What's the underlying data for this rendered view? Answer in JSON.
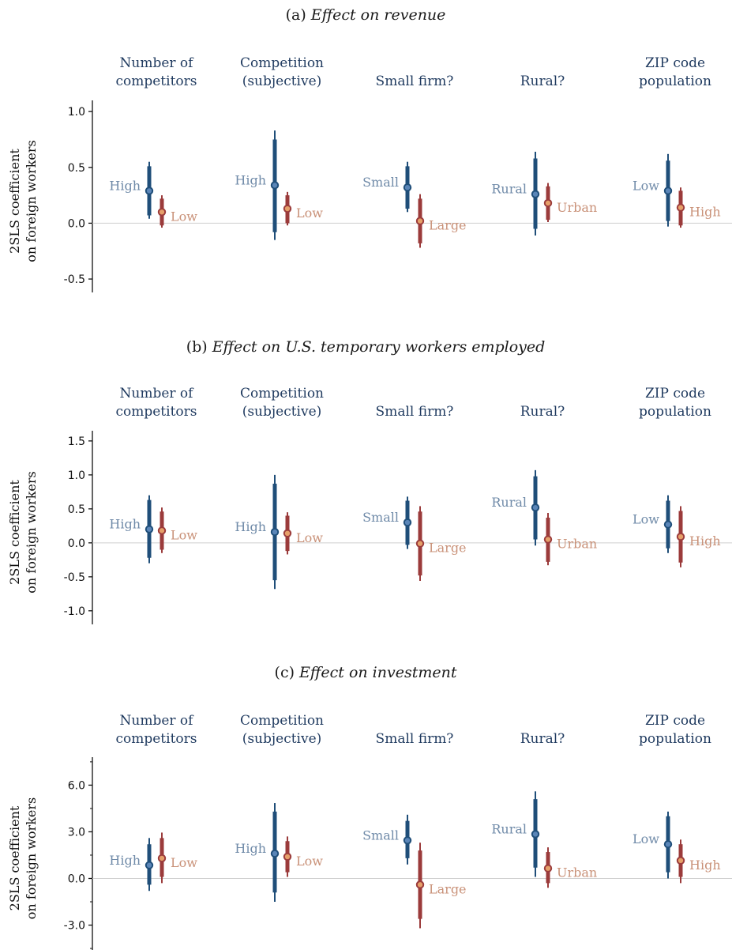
{
  "colors": {
    "high": "#1f4e79",
    "low": "#9b3b3b",
    "high_label": "#6f8aa8",
    "low_label": "#c99178",
    "zero_line": "#cfcfcf",
    "marker_fill_high": "#5b86b8",
    "marker_fill_low": "#e6a06a"
  },
  "chart_data": [
    {
      "type": "scatter",
      "panel_letter": "(a) ",
      "title": "Effect on revenue",
      "ylabel": [
        "2SLS coefficient",
        "on foreign workers"
      ],
      "ylim": [
        -0.62,
        1.1
      ],
      "ticks": [
        1.0,
        0.5,
        0.0,
        -0.5
      ],
      "tick_labels": [
        "1.0",
        "0.5",
        "0.0",
        "-0.5"
      ],
      "minor_ticks": [],
      "groups": [
        {
          "label": [
            "Number of",
            "competitors"
          ],
          "points": [
            {
              "side": "high",
              "label": "High",
              "estimate": 0.29,
              "ci90": [
                0.07,
                0.51
              ],
              "ci95": [
                0.04,
                0.55
              ]
            },
            {
              "side": "low",
              "label": "Low",
              "estimate": 0.1,
              "ci90": [
                -0.02,
                0.22
              ],
              "ci95": [
                -0.04,
                0.25
              ]
            }
          ]
        },
        {
          "label": [
            "Competition",
            "(subjective)"
          ],
          "points": [
            {
              "side": "high",
              "label": "High",
              "estimate": 0.34,
              "ci90": [
                -0.08,
                0.75
              ],
              "ci95": [
                -0.15,
                0.83
              ]
            },
            {
              "side": "low",
              "label": "Low",
              "estimate": 0.13,
              "ci90": [
                0.0,
                0.25
              ],
              "ci95": [
                -0.02,
                0.28
              ]
            }
          ]
        },
        {
          "label": [
            "Small firm?"
          ],
          "points": [
            {
              "side": "high",
              "label": "Small",
              "estimate": 0.32,
              "ci90": [
                0.13,
                0.51
              ],
              "ci95": [
                0.1,
                0.55
              ]
            },
            {
              "side": "low",
              "label": "Large",
              "estimate": 0.02,
              "ci90": [
                -0.18,
                0.22
              ],
              "ci95": [
                -0.22,
                0.26
              ]
            }
          ]
        },
        {
          "label": [
            "Rural?"
          ],
          "points": [
            {
              "side": "high",
              "label": "Rural",
              "estimate": 0.26,
              "ci90": [
                -0.05,
                0.58
              ],
              "ci95": [
                -0.11,
                0.64
              ]
            },
            {
              "side": "low",
              "label": "Urban",
              "estimate": 0.18,
              "ci90": [
                0.03,
                0.33
              ],
              "ci95": [
                0.01,
                0.36
              ]
            }
          ]
        },
        {
          "label": [
            "ZIP code",
            "population"
          ],
          "points": [
            {
              "side": "high",
              "label": "Low",
              "estimate": 0.29,
              "ci90": [
                0.02,
                0.56
              ],
              "ci95": [
                -0.03,
                0.62
              ]
            },
            {
              "side": "low",
              "label": "High",
              "estimate": 0.14,
              "ci90": [
                -0.02,
                0.29
              ],
              "ci95": [
                -0.04,
                0.32
              ]
            }
          ]
        }
      ]
    },
    {
      "type": "scatter",
      "panel_letter": "(b) ",
      "title": "Effect on U.S. temporary workers employed",
      "ylabel": [
        "2SLS coefficient",
        "on foreign workers"
      ],
      "ylim": [
        -1.2,
        1.65
      ],
      "ticks": [
        1.5,
        1.0,
        0.5,
        0.0,
        -0.5,
        -1.0
      ],
      "tick_labels": [
        "1.5",
        "1.0",
        "0.5",
        "0.0",
        "-0.5",
        "-1.0"
      ],
      "minor_ticks": [],
      "groups": [
        {
          "label": [
            "Number of",
            "competitors"
          ],
          "points": [
            {
              "side": "high",
              "label": "High",
              "estimate": 0.2,
              "ci90": [
                -0.22,
                0.63
              ],
              "ci95": [
                -0.3,
                0.7
              ]
            },
            {
              "side": "low",
              "label": "Low",
              "estimate": 0.18,
              "ci90": [
                -0.1,
                0.46
              ],
              "ci95": [
                -0.15,
                0.52
              ]
            }
          ]
        },
        {
          "label": [
            "Competition",
            "(subjective)"
          ],
          "points": [
            {
              "side": "high",
              "label": "High",
              "estimate": 0.16,
              "ci90": [
                -0.55,
                0.87
              ],
              "ci95": [
                -0.68,
                1.0
              ]
            },
            {
              "side": "low",
              "label": "Low",
              "estimate": 0.14,
              "ci90": [
                -0.12,
                0.4
              ],
              "ci95": [
                -0.17,
                0.45
              ]
            }
          ]
        },
        {
          "label": [
            "Small firm?"
          ],
          "points": [
            {
              "side": "high",
              "label": "Small",
              "estimate": 0.3,
              "ci90": [
                -0.03,
                0.62
              ],
              "ci95": [
                -0.09,
                0.68
              ]
            },
            {
              "side": "low",
              "label": "Large",
              "estimate": -0.01,
              "ci90": [
                -0.48,
                0.46
              ],
              "ci95": [
                -0.56,
                0.54
              ]
            }
          ]
        },
        {
          "label": [
            "Rural?"
          ],
          "points": [
            {
              "side": "high",
              "label": "Rural",
              "estimate": 0.52,
              "ci90": [
                0.05,
                0.98
              ],
              "ci95": [
                -0.04,
                1.07
              ]
            },
            {
              "side": "low",
              "label": "Urban",
              "estimate": 0.05,
              "ci90": [
                -0.28,
                0.37
              ],
              "ci95": [
                -0.33,
                0.44
              ]
            }
          ]
        },
        {
          "label": [
            "ZIP code",
            "population"
          ],
          "points": [
            {
              "side": "high",
              "label": "Low",
              "estimate": 0.27,
              "ci90": [
                -0.08,
                0.62
              ],
              "ci95": [
                -0.15,
                0.7
              ]
            },
            {
              "side": "low",
              "label": "High",
              "estimate": 0.09,
              "ci90": [
                -0.29,
                0.47
              ],
              "ci95": [
                -0.36,
                0.54
              ]
            }
          ]
        }
      ]
    },
    {
      "type": "scatter",
      "panel_letter": "(c) ",
      "title": "Effect on investment",
      "ylabel": [
        "2SLS coefficient",
        "on foreign workers"
      ],
      "ylim": [
        -4.6,
        7.8
      ],
      "ticks": [
        6.0,
        3.0,
        0.0,
        -3.0
      ],
      "tick_labels": [
        "6.0",
        "3.0",
        "0.0",
        "-3.0"
      ],
      "minor_ticks": [
        7.5,
        4.5,
        1.5,
        -1.5,
        -4.5
      ],
      "groups": [
        {
          "label": [
            "Number of",
            "competitors"
          ],
          "points": [
            {
              "side": "high",
              "label": "High",
              "estimate": 0.85,
              "ci90": [
                -0.4,
                2.2
              ],
              "ci95": [
                -0.8,
                2.6
              ]
            },
            {
              "side": "low",
              "label": "Low",
              "estimate": 1.3,
              "ci90": [
                0.1,
                2.6
              ],
              "ci95": [
                -0.3,
                2.95
              ]
            }
          ]
        },
        {
          "label": [
            "Competition",
            "(subjective)"
          ],
          "points": [
            {
              "side": "high",
              "label": "High",
              "estimate": 1.6,
              "ci90": [
                -0.9,
                4.3
              ],
              "ci95": [
                -1.5,
                4.85
              ]
            },
            {
              "side": "low",
              "label": "Low",
              "estimate": 1.4,
              "ci90": [
                0.4,
                2.4
              ],
              "ci95": [
                0.1,
                2.7
              ]
            }
          ]
        },
        {
          "label": [
            "Small firm?"
          ],
          "points": [
            {
              "side": "high",
              "label": "Small",
              "estimate": 2.45,
              "ci90": [
                1.3,
                3.7
              ],
              "ci95": [
                0.9,
                4.1
              ]
            },
            {
              "side": "low",
              "label": "Large",
              "estimate": -0.4,
              "ci90": [
                -2.6,
                1.8
              ],
              "ci95": [
                -3.2,
                2.3
              ]
            }
          ]
        },
        {
          "label": [
            "Rural?"
          ],
          "points": [
            {
              "side": "high",
              "label": "Rural",
              "estimate": 2.85,
              "ci90": [
                0.7,
                5.1
              ],
              "ci95": [
                0.1,
                5.6
              ]
            },
            {
              "side": "low",
              "label": "Urban",
              "estimate": 0.65,
              "ci90": [
                -0.3,
                1.7
              ],
              "ci95": [
                -0.6,
                2.0
              ]
            }
          ]
        },
        {
          "label": [
            "ZIP code",
            "population"
          ],
          "points": [
            {
              "side": "high",
              "label": "Low",
              "estimate": 2.2,
              "ci90": [
                0.4,
                4.0
              ],
              "ci95": [
                0.0,
                4.3
              ]
            },
            {
              "side": "low",
              "label": "High",
              "estimate": 1.15,
              "ci90": [
                0.1,
                2.2
              ],
              "ci95": [
                -0.3,
                2.5
              ]
            }
          ]
        }
      ]
    }
  ]
}
